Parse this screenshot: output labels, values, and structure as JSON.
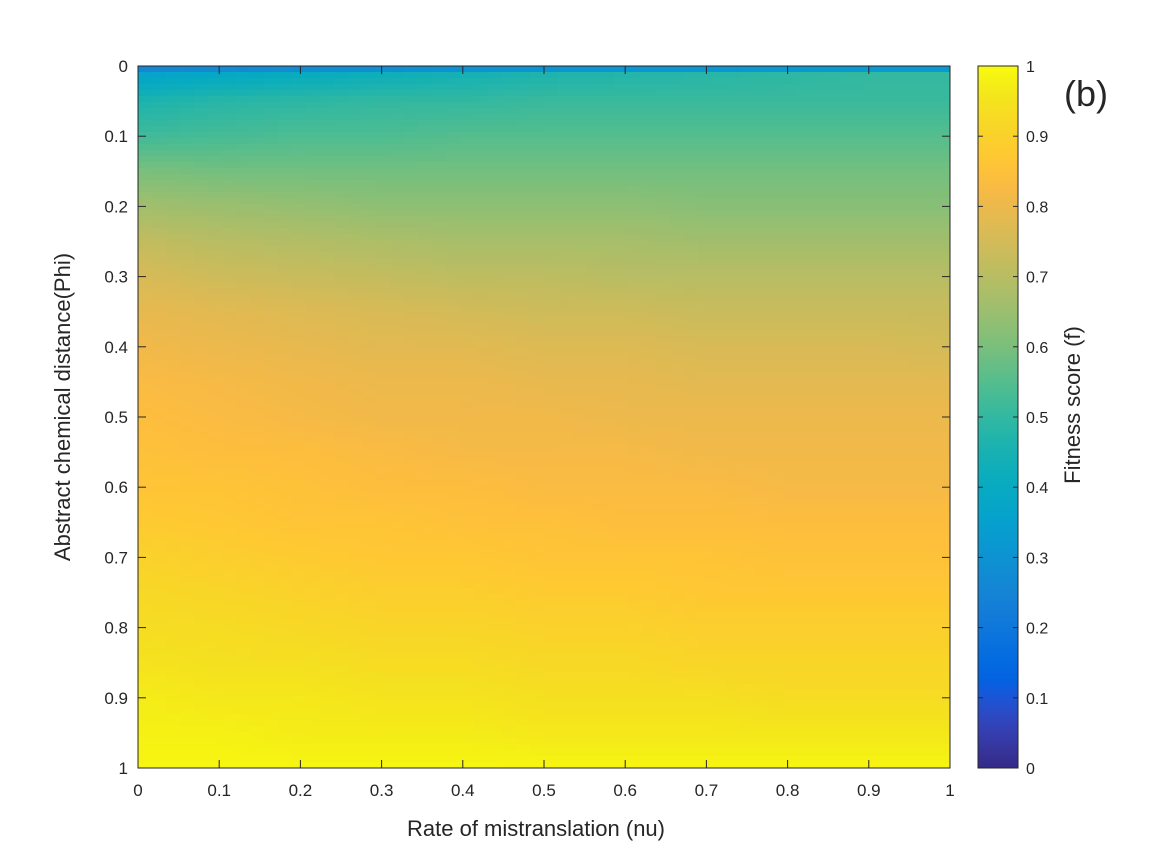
{
  "chart_data": {
    "type": "heatmap",
    "panel_label": "(b)",
    "xlabel": "Rate of mistranslation (nu)",
    "ylabel": "Abstract chemical distance(Phi)",
    "colorbar_label": "Fitness score (f)",
    "xlim": [
      0,
      1
    ],
    "ylim": [
      0,
      1
    ],
    "y_reversed": true,
    "clim": [
      0,
      1
    ],
    "colormap": "parula",
    "x_ticks": [
      "0",
      "0.1",
      "0.2",
      "0.3",
      "0.4",
      "0.5",
      "0.6",
      "0.7",
      "0.8",
      "0.9",
      "1"
    ],
    "y_ticks": [
      "0",
      "0.1",
      "0.2",
      "0.3",
      "0.4",
      "0.5",
      "0.6",
      "0.7",
      "0.8",
      "0.9",
      "1"
    ],
    "colorbar_ticks": [
      "0",
      "0.1",
      "0.2",
      "0.3",
      "0.4",
      "0.5",
      "0.6",
      "0.7",
      "0.8",
      "0.9",
      "1"
    ],
    "x": [
      0,
      0.1,
      0.2,
      0.3,
      0.4,
      0.5,
      0.6,
      0.7,
      0.8,
      0.9,
      1
    ],
    "y": [
      0,
      0.01,
      0.05,
      0.1,
      0.15,
      0.2,
      0.25,
      0.3,
      0.35,
      0.4,
      0.45,
      0.5,
      0.55,
      0.6,
      0.65,
      0.7,
      0.75,
      0.8,
      0.85,
      0.9,
      0.95,
      1
    ],
    "values": [
      [
        0.19,
        0.19,
        0.19,
        0.19,
        0.19,
        0.19,
        0.19,
        0.19,
        0.19,
        0.19,
        0.19
      ],
      [
        0.35,
        0.38,
        0.4,
        0.42,
        0.44,
        0.46,
        0.47,
        0.48,
        0.49,
        0.5,
        0.5
      ],
      [
        0.46,
        0.48,
        0.49,
        0.5,
        0.5,
        0.51,
        0.51,
        0.51,
        0.51,
        0.51,
        0.51
      ],
      [
        0.52,
        0.53,
        0.54,
        0.54,
        0.55,
        0.55,
        0.55,
        0.55,
        0.55,
        0.55,
        0.55
      ],
      [
        0.6,
        0.59,
        0.59,
        0.59,
        0.59,
        0.59,
        0.59,
        0.59,
        0.59,
        0.59,
        0.59
      ],
      [
        0.66,
        0.65,
        0.64,
        0.63,
        0.63,
        0.63,
        0.63,
        0.62,
        0.62,
        0.62,
        0.62
      ],
      [
        0.72,
        0.7,
        0.69,
        0.68,
        0.67,
        0.67,
        0.67,
        0.66,
        0.66,
        0.66,
        0.66
      ],
      [
        0.76,
        0.74,
        0.73,
        0.72,
        0.71,
        0.71,
        0.7,
        0.7,
        0.7,
        0.7,
        0.7
      ],
      [
        0.79,
        0.78,
        0.77,
        0.76,
        0.75,
        0.74,
        0.74,
        0.73,
        0.73,
        0.73,
        0.73
      ],
      [
        0.81,
        0.8,
        0.79,
        0.78,
        0.78,
        0.77,
        0.77,
        0.76,
        0.76,
        0.76,
        0.75
      ],
      [
        0.83,
        0.82,
        0.81,
        0.8,
        0.8,
        0.79,
        0.79,
        0.78,
        0.78,
        0.78,
        0.78
      ],
      [
        0.84,
        0.83,
        0.82,
        0.81,
        0.81,
        0.81,
        0.8,
        0.8,
        0.8,
        0.8,
        0.8
      ],
      [
        0.85,
        0.84,
        0.84,
        0.83,
        0.82,
        0.82,
        0.82,
        0.81,
        0.81,
        0.81,
        0.81
      ],
      [
        0.86,
        0.86,
        0.85,
        0.84,
        0.84,
        0.83,
        0.83,
        0.83,
        0.82,
        0.82,
        0.82
      ],
      [
        0.88,
        0.87,
        0.86,
        0.86,
        0.85,
        0.85,
        0.84,
        0.84,
        0.84,
        0.84,
        0.84
      ],
      [
        0.9,
        0.89,
        0.88,
        0.87,
        0.87,
        0.86,
        0.86,
        0.86,
        0.85,
        0.85,
        0.85
      ],
      [
        0.92,
        0.91,
        0.9,
        0.89,
        0.89,
        0.88,
        0.88,
        0.87,
        0.87,
        0.87,
        0.87
      ],
      [
        0.93,
        0.93,
        0.92,
        0.91,
        0.91,
        0.9,
        0.9,
        0.89,
        0.89,
        0.89,
        0.89
      ],
      [
        0.95,
        0.94,
        0.94,
        0.93,
        0.93,
        0.92,
        0.92,
        0.91,
        0.91,
        0.91,
        0.91
      ],
      [
        0.97,
        0.96,
        0.96,
        0.95,
        0.95,
        0.94,
        0.94,
        0.94,
        0.93,
        0.93,
        0.93
      ],
      [
        0.98,
        0.98,
        0.97,
        0.97,
        0.97,
        0.96,
        0.96,
        0.96,
        0.96,
        0.96,
        0.96
      ],
      [
        0.99,
        0.99,
        0.99,
        0.99,
        0.99,
        0.99,
        0.99,
        0.99,
        0.99,
        0.99,
        0.99
      ]
    ]
  }
}
